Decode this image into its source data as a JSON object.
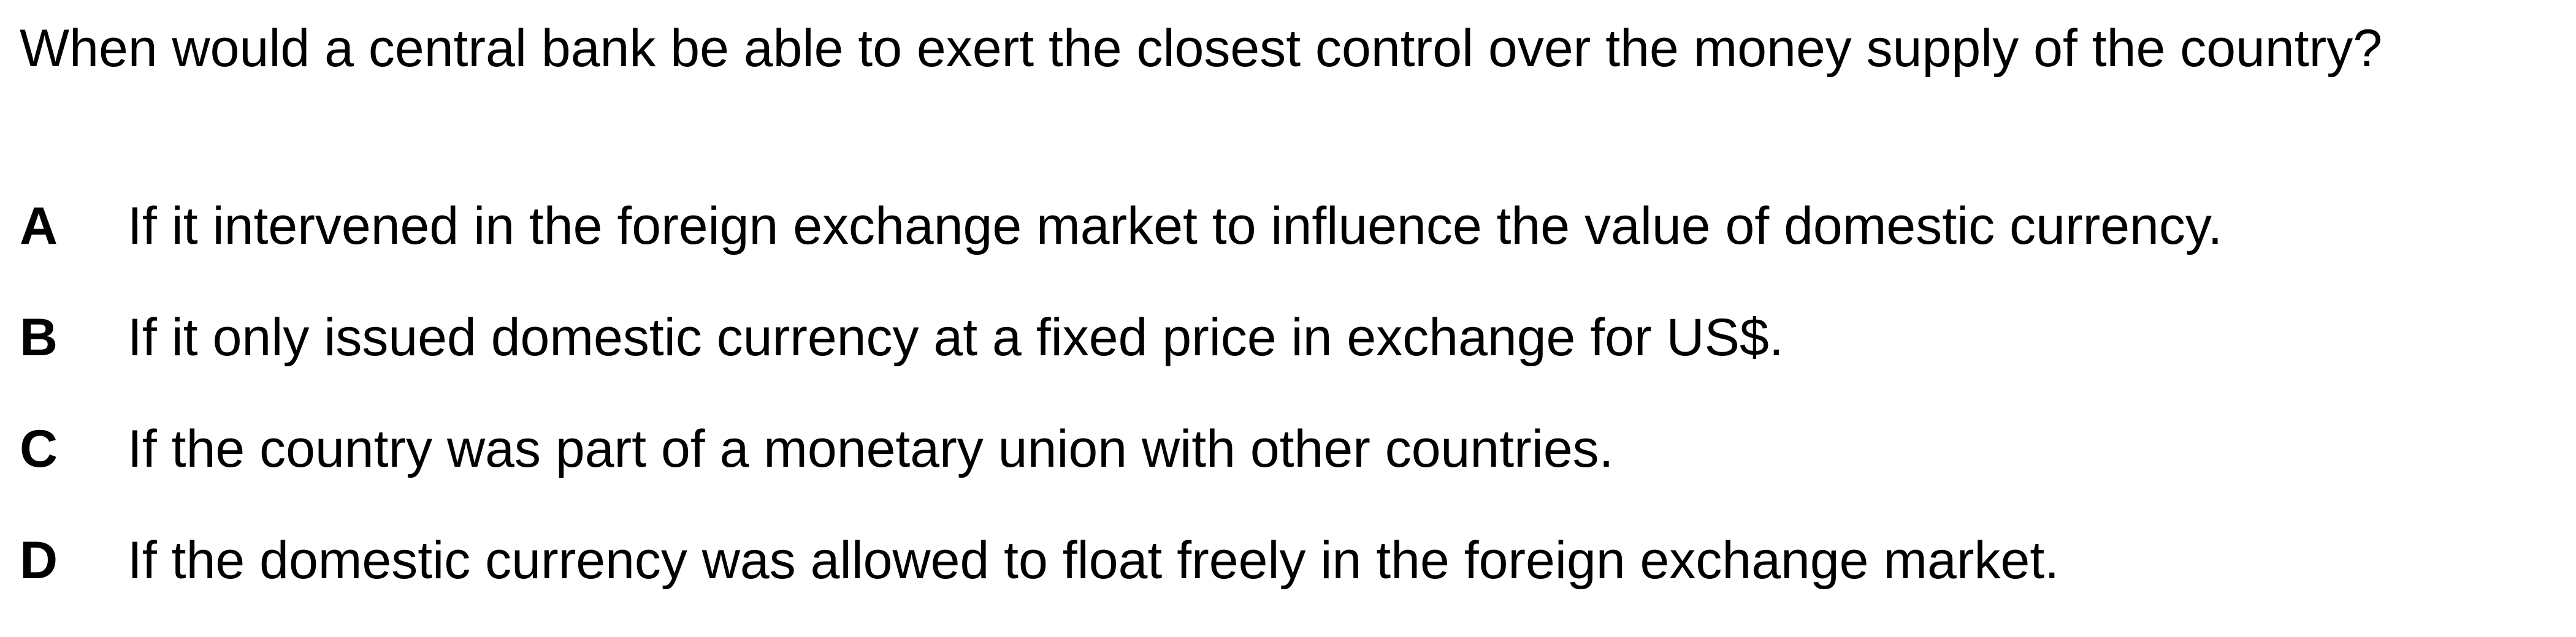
{
  "question": {
    "text": "When would a central bank be able to exert the closest control over the money supply of the country?"
  },
  "options": [
    {
      "letter": "A",
      "text": "If it intervened in the foreign exchange market to influence the value of domestic currency."
    },
    {
      "letter": "B",
      "text": "If it only issued domestic currency at a fixed price in exchange for US$."
    },
    {
      "letter": "C",
      "text": "If the country was part of a monetary union with other countries."
    },
    {
      "letter": "D",
      "text": "If the domestic currency was allowed to float freely in the foreign exchange market."
    }
  ]
}
